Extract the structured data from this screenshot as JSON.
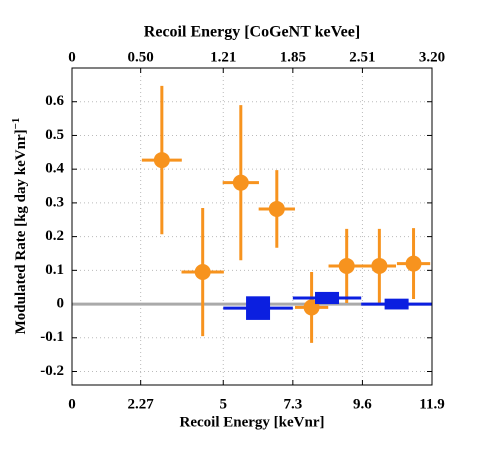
{
  "chart_data": {
    "type": "errorbar",
    "x_label": "Recoil Energy [keVnr]",
    "x2_label": "Recoil Energy [CoGeNT keVee]",
    "y_label": "Modulated Rate [kg day keVnr]",
    "y_label_superscript": "−1",
    "xlim": [
      0,
      11.9
    ],
    "xticks": [
      0,
      2.27,
      5,
      7.3,
      9.6,
      11.9
    ],
    "x2ticks": [
      {
        "value": 0,
        "label": "0"
      },
      {
        "value": 2.27,
        "label": "0.50"
      },
      {
        "value": 5,
        "label": "1.21"
      },
      {
        "value": 7.3,
        "label": "1.85"
      },
      {
        "value": 9.6,
        "label": "2.51"
      },
      {
        "value": 11.9,
        "label": "3.20"
      }
    ],
    "ylim": [
      -0.24,
      0.7
    ],
    "yticks": [
      -0.2,
      -0.1,
      0,
      0.1,
      0.2,
      0.3,
      0.4,
      0.5,
      0.6
    ],
    "grid": true,
    "series": [
      {
        "color": "#f7931e",
        "marker": "circle",
        "x": [
          2.97,
          4.32,
          5.58,
          6.77,
          7.92,
          9.08,
          10.16,
          11.29
        ],
        "values": [
          0.427,
          0.095,
          0.36,
          0.282,
          -0.01,
          0.113,
          0.113,
          0.12
        ],
        "xerr": [
          0.66,
          0.7,
          0.6,
          0.6,
          0.55,
          0.6,
          0.55,
          0.55
        ],
        "yerr": [
          0.22,
          0.19,
          0.23,
          0.115,
          0.105,
          0.11,
          0.11,
          0.105
        ]
      },
      {
        "color": "#0b1fe0",
        "marker": "box",
        "x": [
          6.15,
          8.43,
          10.73
        ],
        "values": [
          -0.012,
          0.018,
          0.0
        ],
        "xerr": [
          1.15,
          1.13,
          1.17
        ],
        "yerr": [
          0.035,
          0.018,
          0.016
        ]
      }
    ]
  }
}
